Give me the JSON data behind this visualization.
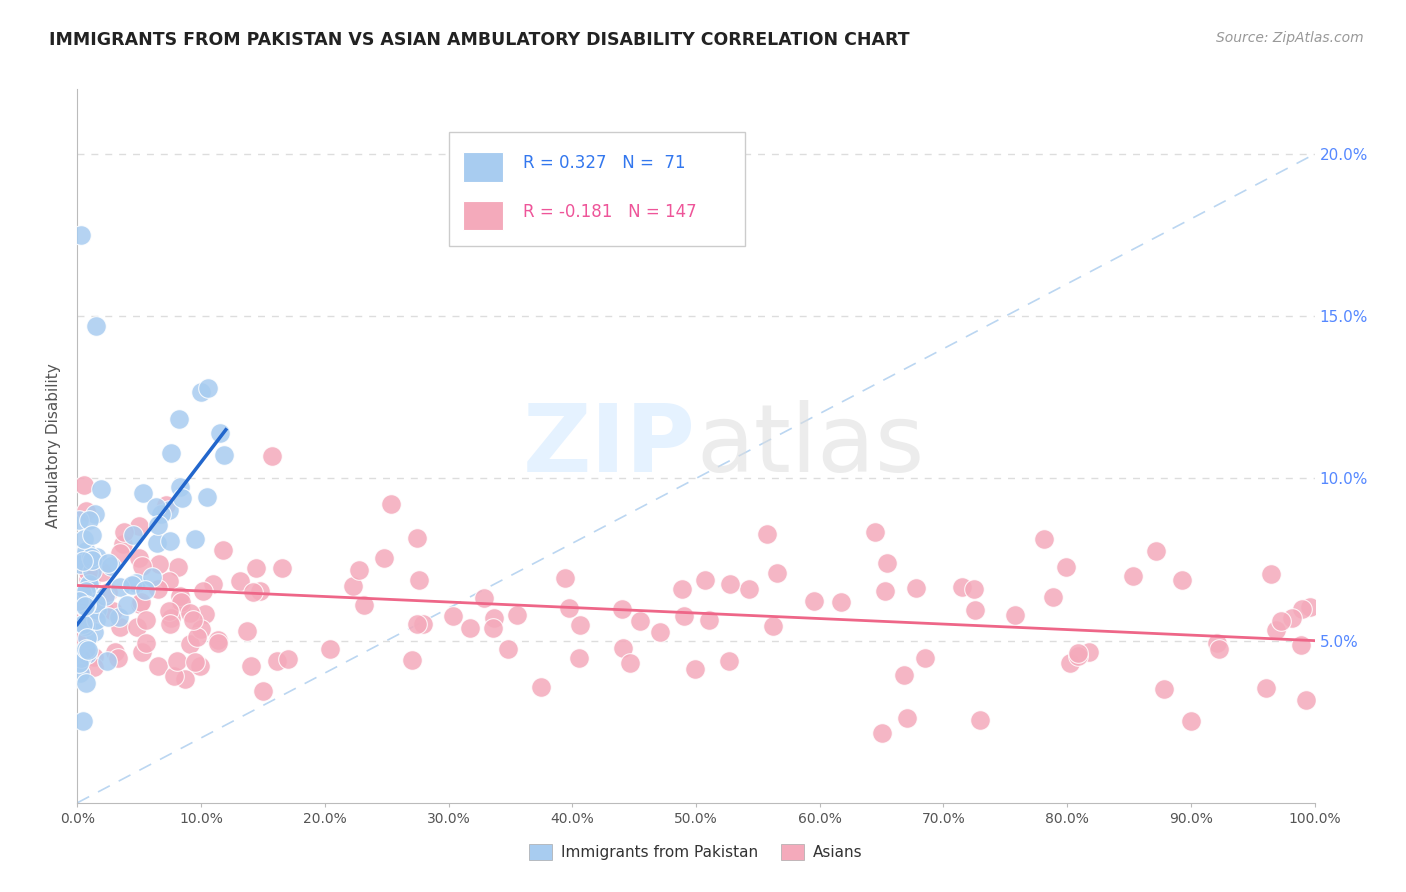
{
  "title": "IMMIGRANTS FROM PAKISTAN VS ASIAN AMBULATORY DISABILITY CORRELATION CHART",
  "source_text": "Source: ZipAtlas.com",
  "ylabel": "Ambulatory Disability",
  "legend_entries": [
    "Immigrants from Pakistan",
    "Asians"
  ],
  "r_values": [
    0.327,
    -0.181
  ],
  "n_values": [
    71,
    147
  ],
  "blue_color": "#A8CCF0",
  "pink_color": "#F4AABB",
  "blue_line_color": "#2266CC",
  "pink_line_color": "#EE6688",
  "diag_line_color": "#AACCEE",
  "title_color": "#222222",
  "source_color": "#999999",
  "background_color": "#FFFFFF",
  "grid_color": "#DDDDDD",
  "xlim": [
    0.0,
    1.0
  ],
  "ylim": [
    0.0,
    0.22
  ],
  "blue_line_x": [
    0.0,
    0.12
  ],
  "blue_line_y": [
    0.055,
    0.115
  ],
  "pink_line_x": [
    0.0,
    1.0
  ],
  "pink_line_y": [
    0.067,
    0.05
  ]
}
